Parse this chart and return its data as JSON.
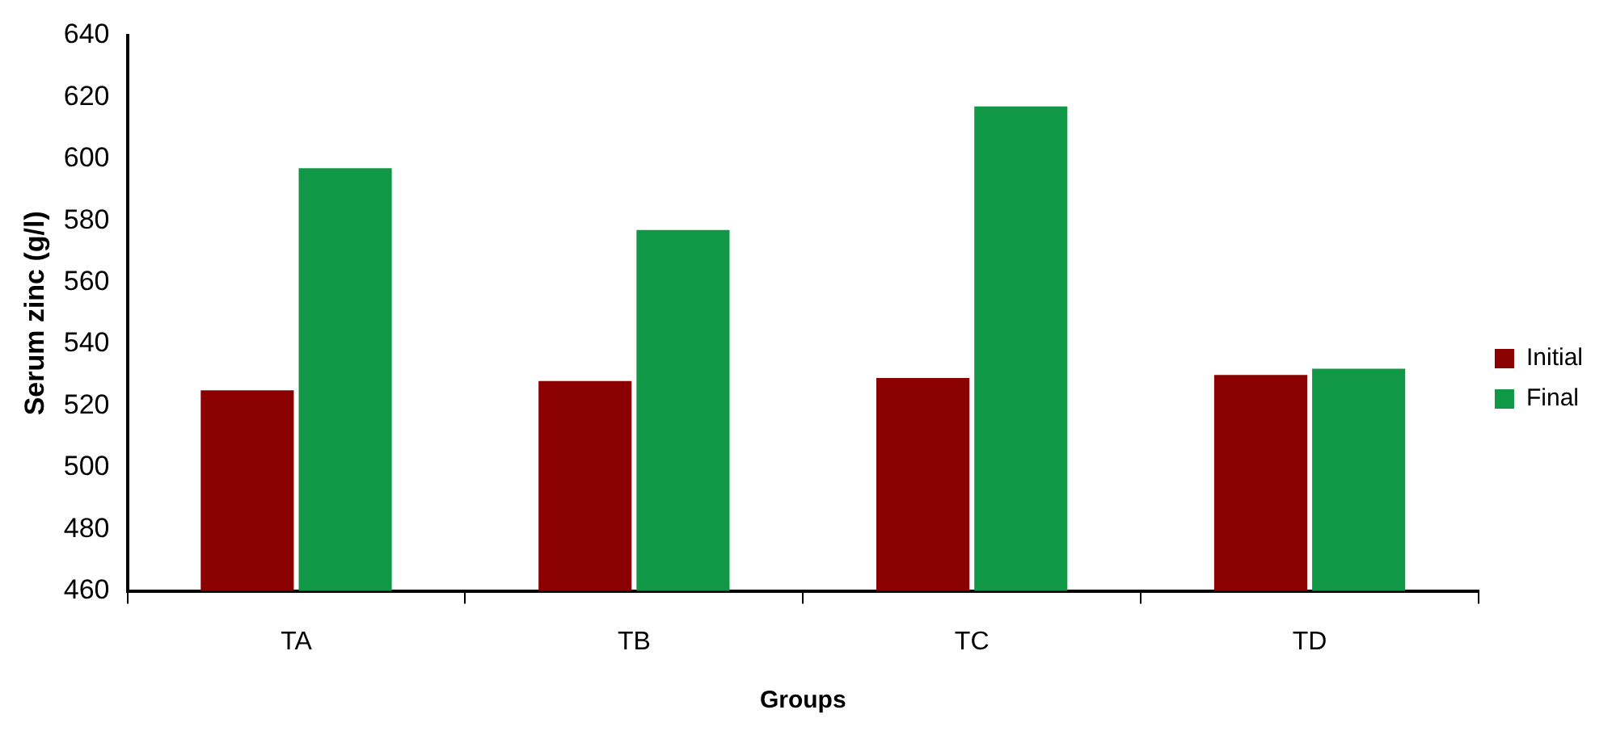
{
  "chart_data": {
    "type": "bar",
    "xlabel": "Groups",
    "ylabel": "Serum zinc (g/l)",
    "categories": [
      "TA",
      "TB",
      "TC",
      "TD"
    ],
    "series": [
      {
        "name": "Initial",
        "color": "#8b0000",
        "values": [
          525,
          528,
          529,
          530
        ]
      },
      {
        "name": "Final",
        "color": "#109847",
        "values": [
          597,
          577,
          617,
          532
        ]
      }
    ],
    "ylim": [
      460,
      640
    ],
    "yticks": [
      460,
      480,
      500,
      520,
      540,
      560,
      580,
      600,
      620,
      640
    ],
    "grid": false,
    "legend": "right"
  }
}
